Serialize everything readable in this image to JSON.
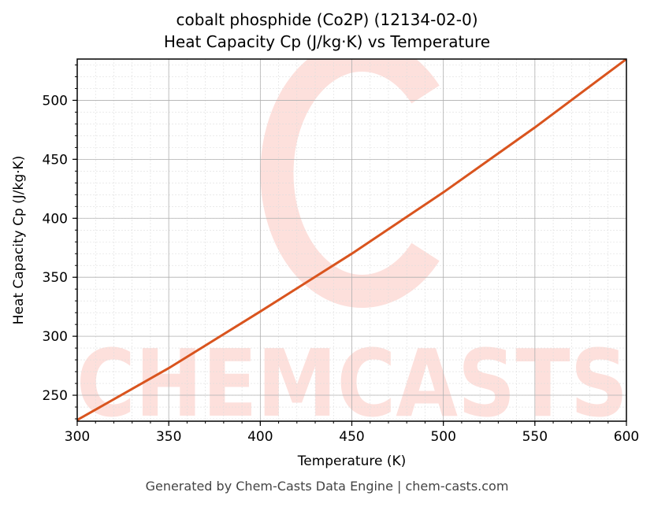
{
  "title": {
    "line1": "cobalt phosphide (Co2P) (12134-02-0)",
    "line2": "Heat Capacity Cp (J/kg·K) vs Temperature"
  },
  "footer": "Generated by Chem-Casts Data Engine | chem-casts.com",
  "watermark": "CHEMCASTS",
  "colors": {
    "line": "#d9541e",
    "watermark": "#fde0dc",
    "grid_major": "#b0b0b0",
    "grid_minor": "#dddddd"
  },
  "chart_data": {
    "type": "line",
    "title": "cobalt phosphide (Co2P) (12134-02-0) Heat Capacity Cp (J/kg·K) vs Temperature",
    "xlabel": "Temperature (K)",
    "ylabel": "Heat Capacity Cp (J/kg·K)",
    "xlim": [
      300,
      600
    ],
    "ylim": [
      228,
      535
    ],
    "xticks": [
      300,
      350,
      400,
      450,
      500,
      550,
      600
    ],
    "yticks": [
      250,
      300,
      350,
      400,
      450,
      500
    ],
    "grid": true,
    "legend": null,
    "series": [
      {
        "name": "Heat Capacity Cp",
        "x": [
          300,
          350,
          400,
          450,
          500,
          550,
          600
        ],
        "y": [
          229,
          273,
          321,
          370,
          422,
          477,
          535
        ]
      }
    ]
  }
}
